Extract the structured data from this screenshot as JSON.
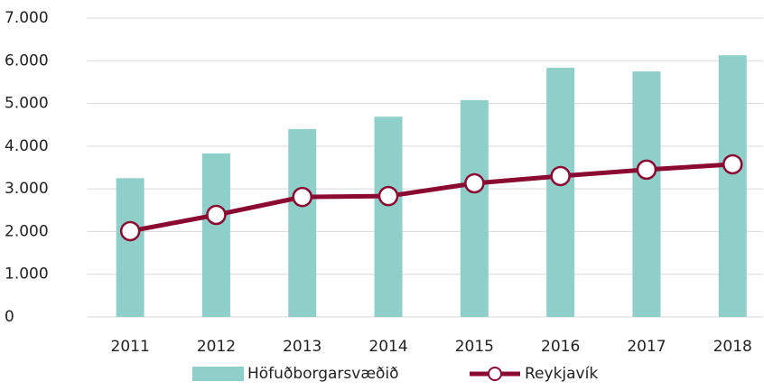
{
  "chart_data": {
    "type": "bar",
    "categories": [
      "2011",
      "2012",
      "2013",
      "2014",
      "2015",
      "2016",
      "2017",
      "2018"
    ],
    "series": [
      {
        "name": "Höfuðborgarsvæðið",
        "type": "bar",
        "color": "#8ecfca",
        "values": [
          3250,
          3830,
          4400,
          4690,
          5075,
          5835,
          5750,
          6130
        ]
      },
      {
        "name": "Reykjavík",
        "type": "line",
        "color": "#8b0a32",
        "values": [
          2010,
          2390,
          2810,
          2830,
          3130,
          3300,
          3450,
          3575
        ]
      }
    ],
    "ylim": [
      0,
      7000
    ],
    "yticks": [
      {
        "value": 0,
        "label": "0"
      },
      {
        "value": 1000,
        "label": "1.000"
      },
      {
        "value": 2000,
        "label": "2.000"
      },
      {
        "value": 3000,
        "label": "3.000"
      },
      {
        "value": 4000,
        "label": "4.000"
      },
      {
        "value": 5000,
        "label": "5.000"
      },
      {
        "value": 6000,
        "label": "6.000"
      },
      {
        "value": 7000,
        "label": "7.000"
      }
    ],
    "grid": true,
    "legend": "bottom"
  }
}
